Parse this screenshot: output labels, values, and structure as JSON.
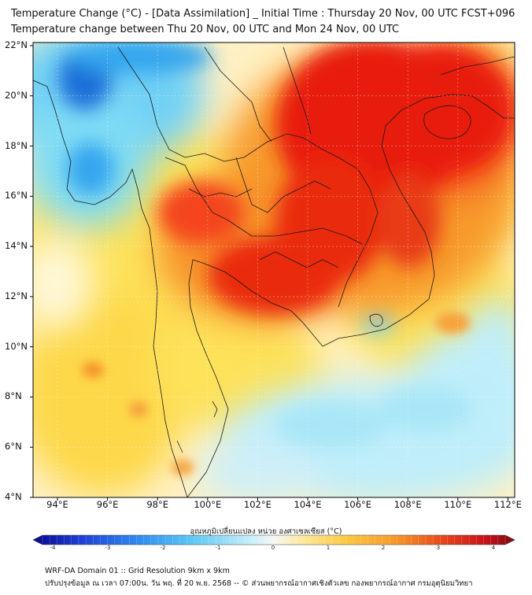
{
  "title_line1": "Temperature Change (°C) - [Data Assimilation] _ Initial Time : Thursday 20 Nov, 00 UTC FCST+096",
  "title_line2": "Temperature change between Thu 20 Nov, 00 UTC and Mon 24 Nov, 00 UTC",
  "lat_labels": [
    "22°N",
    "20°N",
    "18°N",
    "16°N",
    "14°N",
    "12°N",
    "10°N",
    "8°N",
    "6°N",
    "4°N"
  ],
  "lon_labels": [
    "94°E",
    "96°E",
    "98°E",
    "100°E",
    "102°E",
    "104°E",
    "106°E",
    "108°E",
    "110°E",
    "112°E"
  ],
  "colorbar": {
    "title": "อุณหภูมิเปลี่ยนแปลง หน่วย องศาเซลเซียส (°C)",
    "ticks": [
      "-4",
      "-3",
      "-2",
      "-1",
      "0",
      "1",
      "2",
      "3",
      "4"
    ],
    "range": [
      -4,
      4
    ],
    "colors": [
      "#08088a",
      "#1f3fd6",
      "#2f8cf0",
      "#5cc8f5",
      "#c6eefa",
      "#f7f7f7",
      "#fde99a",
      "#fdc840",
      "#f79a2a",
      "#e8461a",
      "#c8101a",
      "#7a0a10"
    ]
  },
  "footer_line1": "WRF-DA Domain 01 :: Grid Resolution 9km x 9km",
  "footer_line2": "ปรับปรุงข้อมูล ณ เวลา 07:00น. วัน พฤ. ที่ 20 พ.ย. 2568 -- © ส่วนพยากรณ์อากาศเชิงตัวเลข กองพยากรณ์อากาศ กรมอุตุนิยมวิทยา",
  "map_colors": {
    "background": "#fff3c8",
    "hot_core": "#e81a0e",
    "hot": "#f4441a",
    "warm": "#f7922a",
    "yellow": "#fde25a",
    "pale": "#fff7d6",
    "cool": "#bfeefa",
    "cyan": "#7fdcf5",
    "blue": "#34a6ee",
    "deep_blue": "#1c6fd8",
    "coast": "#1a1a1a"
  }
}
